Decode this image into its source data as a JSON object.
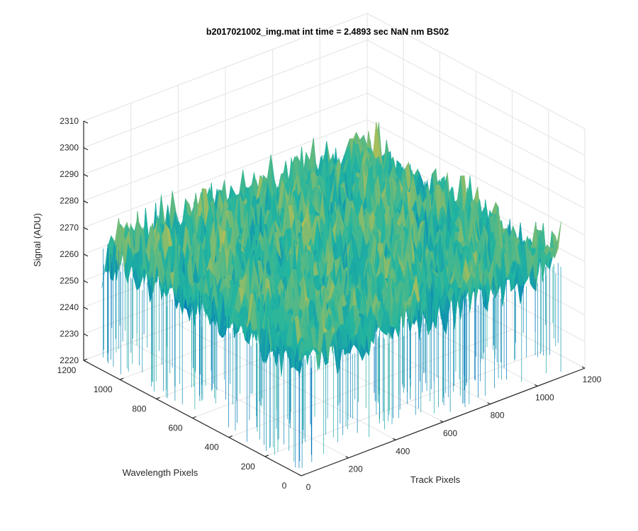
{
  "chart_data": {
    "type": "surface",
    "title": "b2017021002_img.mat int time = 2.4893 sec  NaN nm BS02",
    "xlabel": "Track Pixels",
    "ylabel": "Wavelength Pixels",
    "zlabel": "Signal (ADU)",
    "xlim": [
      0,
      1200
    ],
    "ylim": [
      0,
      1200
    ],
    "zlim": [
      2220,
      2310
    ],
    "x_ticks": [
      0,
      200,
      400,
      600,
      800,
      1000,
      1200
    ],
    "y_ticks": [
      0,
      200,
      400,
      600,
      800,
      1000,
      1200
    ],
    "z_ticks": [
      2220,
      2230,
      2240,
      2250,
      2260,
      2270,
      2280,
      2290,
      2300,
      2310
    ],
    "x_tick_labels": [
      "0",
      "200",
      "400",
      "600",
      "800",
      "1000",
      "1200"
    ],
    "y_tick_labels": [
      "0",
      "200",
      "400",
      "600",
      "800",
      "1000",
      "1200"
    ],
    "z_tick_labels": [
      "2220",
      "2230",
      "2240",
      "2250",
      "2260",
      "2270",
      "2280",
      "2290",
      "2300",
      "2310"
    ],
    "surface_extent": {
      "x": [
        0,
        1100
      ],
      "y": [
        0,
        1100
      ]
    },
    "surface": {
      "mean": 2265,
      "min_approx": 2222,
      "max_approx": 2302,
      "noise": "high-frequency per-pixel noise"
    },
    "colormap": "parula",
    "colormap_low": "#0072BD",
    "colormap_mid": "#22B5A0",
    "colormap_high": "#E8C23A",
    "grid": true
  }
}
